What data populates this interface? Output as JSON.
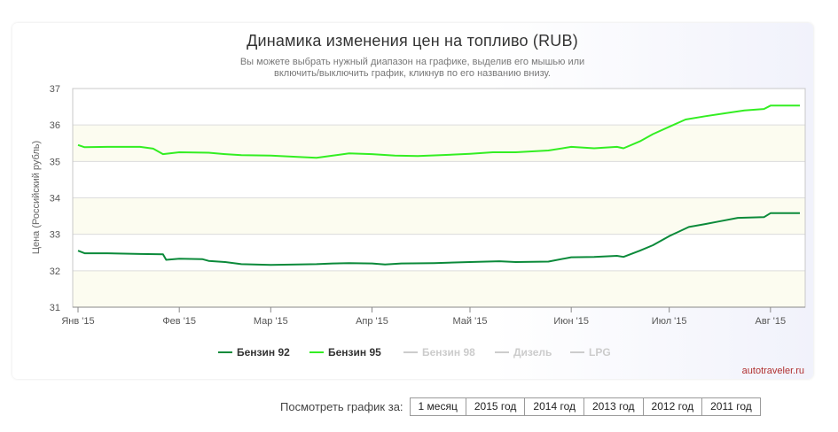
{
  "header": {
    "title": "Динамика изменения цен на топливо (RUB)",
    "subtitle_line1": "Вы можете выбрать нужный диапазон на графике, выделив его мышью или",
    "subtitle_line2": "включить/выключить график, кликнув по его названию внизу."
  },
  "chart_data": {
    "type": "line",
    "title": "Динамика изменения цен на топливо (RUB)",
    "ylabel": "Цена (Российский рубль)",
    "ylim": [
      31,
      37
    ],
    "yticks": [
      31,
      32,
      33,
      34,
      35,
      36,
      37
    ],
    "xlim": [
      "2015-01-01",
      "2015-08-10"
    ],
    "xticks": [
      {
        "date": "2015-01-01",
        "label": "Янв '15"
      },
      {
        "date": "2015-02-01",
        "label": "Фев '15"
      },
      {
        "date": "2015-03-01",
        "label": "Мар '15"
      },
      {
        "date": "2015-04-01",
        "label": "Апр '15"
      },
      {
        "date": "2015-05-01",
        "label": "Май '15"
      },
      {
        "date": "2015-06-01",
        "label": "Июн '15"
      },
      {
        "date": "2015-07-01",
        "label": "Июл '15"
      },
      {
        "date": "2015-08-01",
        "label": "Авг '15"
      }
    ],
    "grid": true,
    "legend_position": "bottom",
    "series": [
      {
        "name": "Бензин 92",
        "color": "#0b8a3a",
        "visible": true,
        "points": [
          [
            "2015-01-01",
            32.55
          ],
          [
            "2015-01-03",
            32.48
          ],
          [
            "2015-01-10",
            32.48
          ],
          [
            "2015-01-20",
            32.46
          ],
          [
            "2015-01-27",
            32.45
          ],
          [
            "2015-01-28",
            32.3
          ],
          [
            "2015-02-01",
            32.33
          ],
          [
            "2015-02-08",
            32.32
          ],
          [
            "2015-02-10",
            32.27
          ],
          [
            "2015-02-15",
            32.24
          ],
          [
            "2015-02-20",
            32.18
          ],
          [
            "2015-03-01",
            32.16
          ],
          [
            "2015-03-15",
            32.18
          ],
          [
            "2015-03-20",
            32.2
          ],
          [
            "2015-03-25",
            32.21
          ],
          [
            "2015-04-01",
            32.2
          ],
          [
            "2015-04-05",
            32.17
          ],
          [
            "2015-04-10",
            32.2
          ],
          [
            "2015-04-20",
            32.21
          ],
          [
            "2015-05-01",
            32.24
          ],
          [
            "2015-05-10",
            32.26
          ],
          [
            "2015-05-15",
            32.24
          ],
          [
            "2015-05-25",
            32.25
          ],
          [
            "2015-06-01",
            32.37
          ],
          [
            "2015-06-08",
            32.38
          ],
          [
            "2015-06-15",
            32.41
          ],
          [
            "2015-06-17",
            32.38
          ],
          [
            "2015-06-22",
            32.55
          ],
          [
            "2015-06-26",
            32.7
          ],
          [
            "2015-07-01",
            32.95
          ],
          [
            "2015-07-07",
            33.2
          ],
          [
            "2015-07-12",
            33.28
          ],
          [
            "2015-07-16",
            33.35
          ],
          [
            "2015-07-22",
            33.45
          ],
          [
            "2015-07-30",
            33.47
          ],
          [
            "2015-08-01",
            33.58
          ],
          [
            "2015-08-10",
            33.58
          ]
        ]
      },
      {
        "name": "Бензин 95",
        "color": "#33ee22",
        "visible": true,
        "points": [
          [
            "2015-01-01",
            35.45
          ],
          [
            "2015-01-03",
            35.39
          ],
          [
            "2015-01-10",
            35.4
          ],
          [
            "2015-01-20",
            35.4
          ],
          [
            "2015-01-24",
            35.35
          ],
          [
            "2015-01-27",
            35.2
          ],
          [
            "2015-02-01",
            35.25
          ],
          [
            "2015-02-10",
            35.24
          ],
          [
            "2015-02-15",
            35.2
          ],
          [
            "2015-02-20",
            35.17
          ],
          [
            "2015-03-01",
            35.16
          ],
          [
            "2015-03-10",
            35.12
          ],
          [
            "2015-03-15",
            35.1
          ],
          [
            "2015-03-20",
            35.16
          ],
          [
            "2015-03-25",
            35.22
          ],
          [
            "2015-04-01",
            35.2
          ],
          [
            "2015-04-08",
            35.16
          ],
          [
            "2015-04-15",
            35.15
          ],
          [
            "2015-04-22",
            35.17
          ],
          [
            "2015-05-01",
            35.21
          ],
          [
            "2015-05-08",
            35.25
          ],
          [
            "2015-05-15",
            35.25
          ],
          [
            "2015-05-25",
            35.3
          ],
          [
            "2015-06-01",
            35.4
          ],
          [
            "2015-06-08",
            35.36
          ],
          [
            "2015-06-15",
            35.4
          ],
          [
            "2015-06-17",
            35.36
          ],
          [
            "2015-06-22",
            35.55
          ],
          [
            "2015-06-26",
            35.75
          ],
          [
            "2015-07-01",
            35.95
          ],
          [
            "2015-07-06",
            36.15
          ],
          [
            "2015-07-12",
            36.24
          ],
          [
            "2015-07-18",
            36.32
          ],
          [
            "2015-07-24",
            36.4
          ],
          [
            "2015-07-30",
            36.44
          ],
          [
            "2015-08-01",
            36.53
          ],
          [
            "2015-08-10",
            36.53
          ]
        ]
      },
      {
        "name": "Бензин 98",
        "color": "#cccccc",
        "visible": false,
        "points": []
      },
      {
        "name": "Дизель",
        "color": "#cccccc",
        "visible": false,
        "points": []
      },
      {
        "name": "LPG",
        "color": "#cccccc",
        "visible": false,
        "points": []
      }
    ],
    "colors": {
      "band": "#fcfcf0",
      "grid": "#dcdcdc",
      "axis": "#888888",
      "hidden_legend": "#cccccc",
      "legend_text": "#333333"
    }
  },
  "footer": {
    "brand": "autotraveler.ru",
    "range_label": "Посмотреть график за:",
    "range_buttons": [
      "1 месяц",
      "2015 год",
      "2014 год",
      "2013 год",
      "2012 год",
      "2011 год"
    ]
  }
}
